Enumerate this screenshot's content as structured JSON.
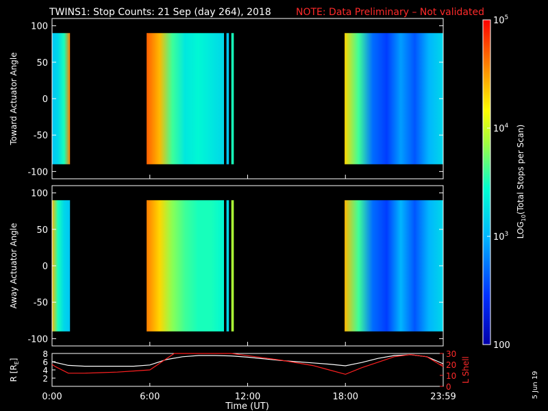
{
  "title": "TWINS1: Stop Counts: 21 Sep (day 264), 2018",
  "note": "NOTE: Data Preliminary – Not validated",
  "date_stamp": "5 Jun 19",
  "colors": {
    "note": "#ff2a2a",
    "r_line": "#ffffff",
    "l_line": "#ff2020"
  },
  "chart_data": [
    {
      "type": "heatmap",
      "ylabel": "Toward Actuator Angle",
      "ylim": [
        -110,
        110
      ],
      "yticks": [
        "100",
        "50",
        "0",
        "-50",
        "-100"
      ],
      "yticks_values": [
        100,
        50,
        0,
        -50,
        -100
      ],
      "xlim": [
        0,
        24
      ],
      "data_ylim": [
        -90,
        90
      ],
      "intervals": [
        {
          "start": 0.0,
          "end": 1.1,
          "level": 3.2,
          "gradient": [
            3.1,
            3.2,
            3.5,
            4.6
          ]
        },
        {
          "start": 5.8,
          "end": 10.55,
          "level": 3.3,
          "gradient": [
            4.7,
            4.4,
            3.6,
            3.3,
            3.4,
            3.3,
            3.2
          ]
        },
        {
          "start": 10.7,
          "end": 10.85,
          "level": 3.1
        },
        {
          "start": 11.0,
          "end": 11.15,
          "level": 3.5
        },
        {
          "start": 17.95,
          "end": 23.98,
          "level": 2.6,
          "gradient": [
            4.3,
            3.6,
            2.7,
            2.5,
            2.9,
            2.6,
            3.0,
            3.2
          ]
        }
      ]
    },
    {
      "type": "heatmap",
      "ylabel": "Away Actuator Angle",
      "ylim": [
        -110,
        110
      ],
      "yticks": [
        "100",
        "50",
        "0",
        "-50",
        "-100"
      ],
      "yticks_values": [
        100,
        50,
        0,
        -50,
        -100
      ],
      "xlim": [
        0,
        24
      ],
      "data_ylim": [
        -90,
        90
      ],
      "intervals": [
        {
          "start": 0.0,
          "end": 1.1,
          "level": 3.3,
          "gradient": [
            4.4,
            3.5,
            3.2,
            3.1
          ]
        },
        {
          "start": 5.8,
          "end": 10.55,
          "level": 3.5,
          "gradient": [
            4.6,
            4.3,
            3.8,
            3.6,
            3.5,
            3.5,
            3.4
          ]
        },
        {
          "start": 10.7,
          "end": 10.85,
          "level": 3.2
        },
        {
          "start": 11.0,
          "end": 11.15,
          "level": 3.9
        },
        {
          "start": 17.95,
          "end": 23.98,
          "level": 2.6,
          "gradient": [
            4.4,
            3.6,
            2.7,
            2.5,
            3.0,
            2.6,
            3.0,
            3.2
          ]
        }
      ]
    },
    {
      "type": "line",
      "ylabel": "R [R",
      "ylabel_sub": "E",
      "ylabel_end": "]",
      "ylabel2": "L Shell",
      "ylim": [
        0,
        8
      ],
      "ylim2": [
        0,
        30
      ],
      "yticks": [
        "8",
        "6",
        "4",
        "2"
      ],
      "yticks_values": [
        8,
        6,
        4,
        2
      ],
      "yticks2": [
        "30",
        "20",
        "10",
        "0"
      ],
      "yticks2_values": [
        30,
        20,
        10,
        0
      ],
      "xlim": [
        0,
        24
      ],
      "xticks": [
        "0:00",
        "6:00",
        "12:00",
        "18:00",
        "23:59"
      ],
      "xticks_values": [
        0,
        6,
        12,
        18,
        24
      ],
      "xlabel": "Time (UT)",
      "series": [
        {
          "axis": "R",
          "x": [
            0,
            1,
            2,
            3,
            4,
            5,
            6,
            7,
            8,
            9,
            10,
            11,
            12,
            13,
            14,
            15,
            16,
            17,
            18,
            19,
            20,
            21,
            22,
            23,
            24
          ],
          "values": [
            6.0,
            5.1,
            4.9,
            4.9,
            4.9,
            4.9,
            5.2,
            6.5,
            7.2,
            7.5,
            7.5,
            7.4,
            7.1,
            6.7,
            6.3,
            6.0,
            5.7,
            5.4,
            5.0,
            5.8,
            6.8,
            7.5,
            7.7,
            7.2,
            5.5
          ]
        },
        {
          "axis": "L",
          "x": [
            0,
            0.2,
            1,
            2,
            3,
            4,
            5,
            6,
            7,
            7.5,
            11,
            12,
            14,
            16,
            17,
            18,
            19,
            20,
            21,
            22,
            23,
            24
          ],
          "values": [
            20,
            18,
            12,
            12,
            12.5,
            13,
            14,
            15,
            25,
            31,
            31,
            28,
            24,
            19,
            15,
            11,
            17,
            22,
            27,
            29,
            27,
            18
          ]
        }
      ]
    }
  ],
  "colorbar": {
    "label": "LOG",
    "label_sub": "10",
    "label_end": "(Total Stops per Scan)",
    "range": [
      2,
      5
    ],
    "ticks": [
      {
        "value": 5,
        "base": "10",
        "exp": "5"
      },
      {
        "value": 4,
        "base": "10",
        "exp": "4"
      },
      {
        "value": 3,
        "base": "10",
        "exp": "3"
      },
      {
        "value": 2,
        "base": "100",
        "exp": ""
      }
    ]
  }
}
